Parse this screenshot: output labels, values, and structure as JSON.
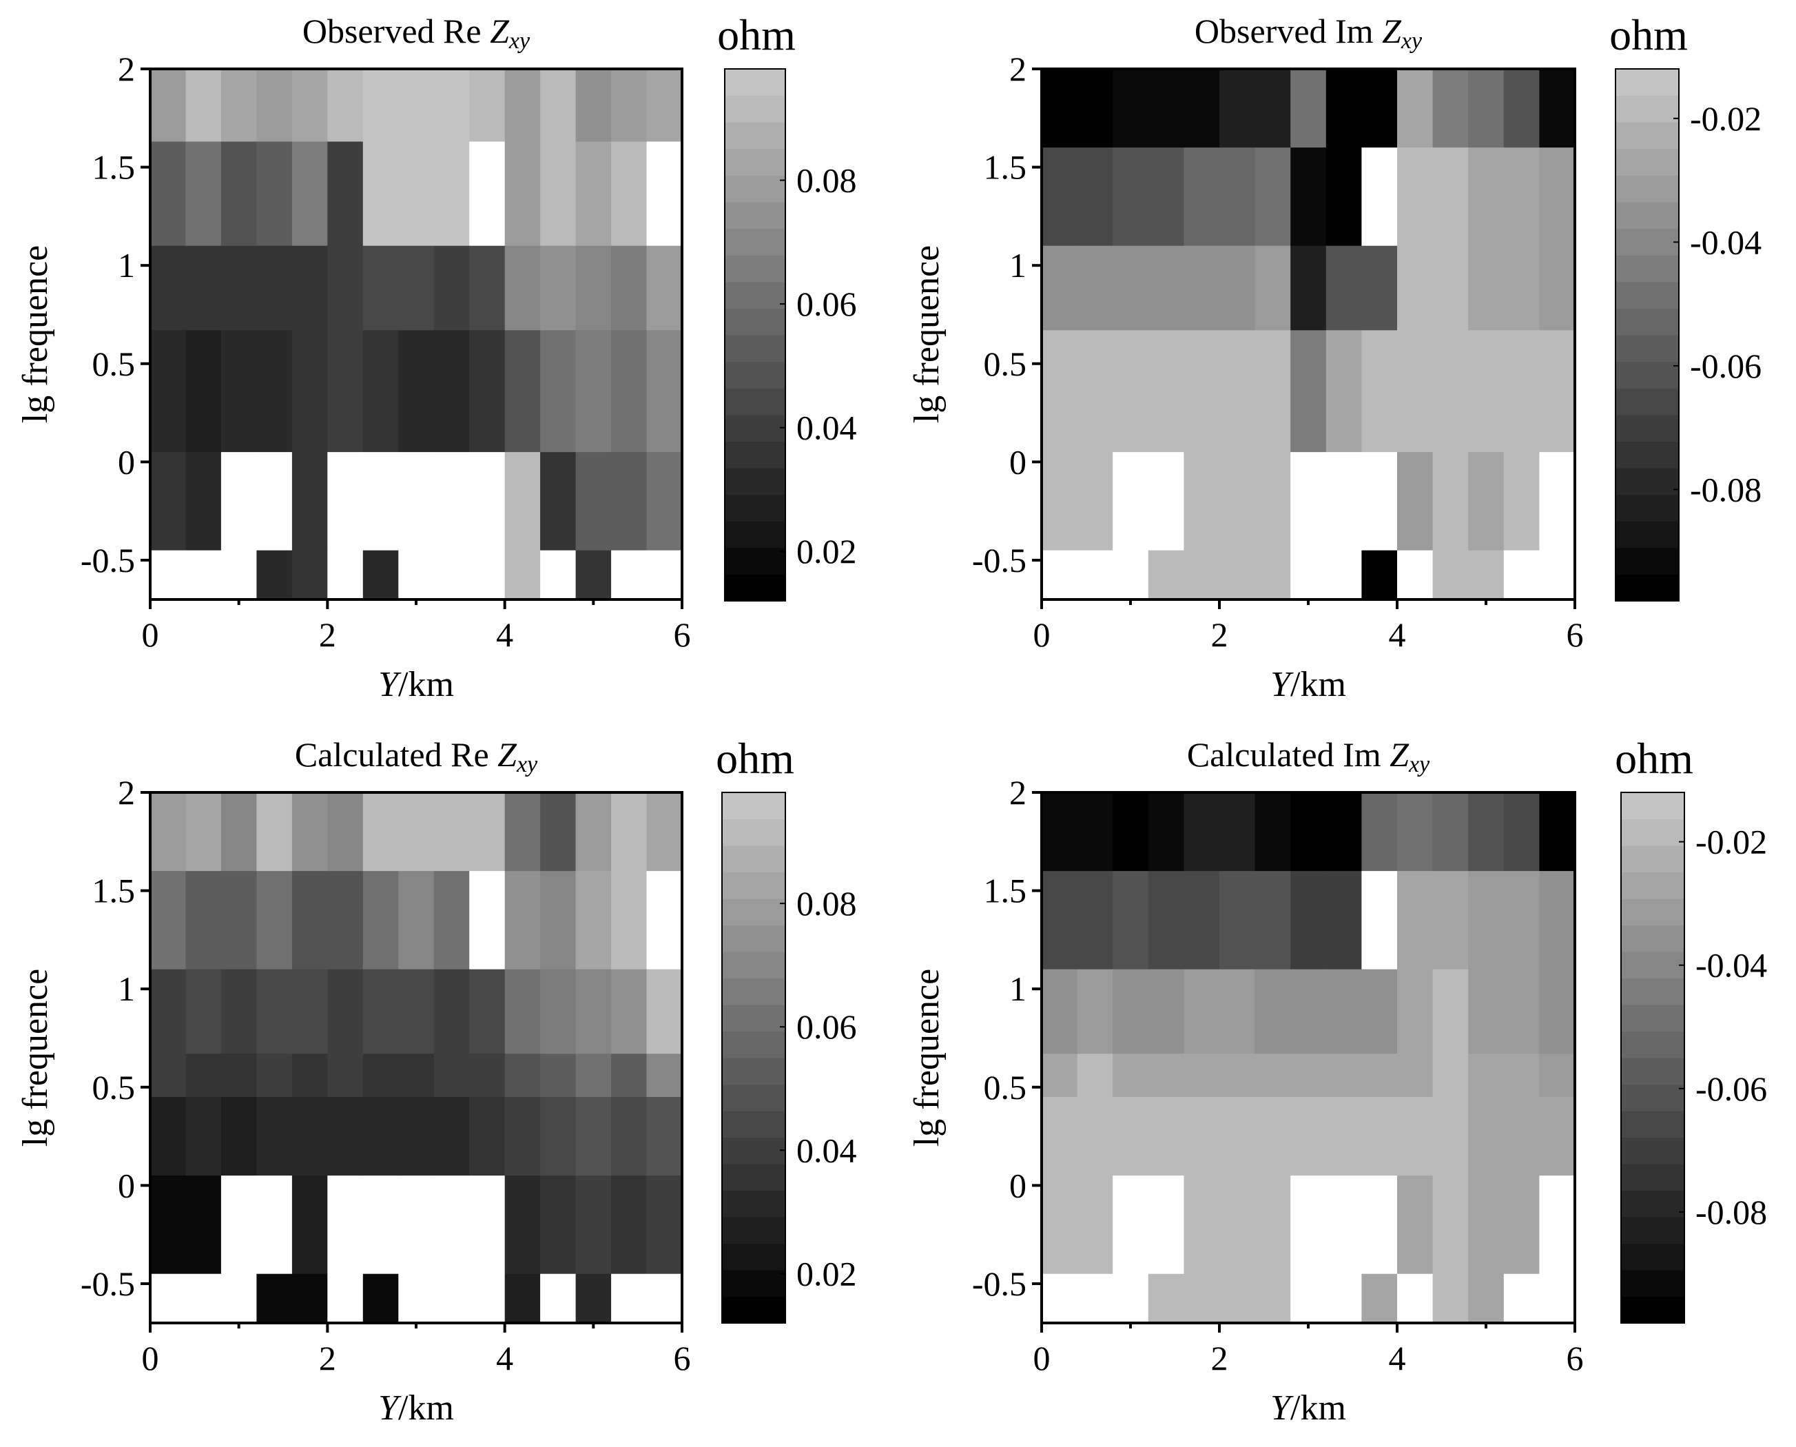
{
  "figure": {
    "colormap": {
      "low": "#000000",
      "high": "#c4c4c4",
      "missing": "#ffffff",
      "levels": 20
    }
  },
  "chart_data": [
    {
      "type": "heatmap",
      "title": {
        "prefix": "Observed Re ",
        "italic": "Z",
        "subscript": "xy"
      },
      "xlabel": {
        "italic": "Y",
        "rest": "/km"
      },
      "ylabel": "lg frequence",
      "xlim": [
        0,
        6
      ],
      "ylim": [
        -0.7,
        2
      ],
      "xticks": [
        "0",
        "2",
        "4",
        "6"
      ],
      "yticks": [
        "2",
        "1.5",
        "1",
        "0.5",
        "0",
        "-0.5"
      ],
      "colorbar": {
        "unit": "ohm",
        "range": [
          0.012,
          0.098
        ],
        "ticks": [
          "0.08",
          "0.06",
          "0.04",
          "0.02"
        ]
      },
      "x_edges": [
        0,
        0.4,
        0.8,
        1.2,
        1.6,
        2.0,
        2.4,
        2.8,
        3.2,
        3.6,
        4.0,
        4.4,
        4.8,
        5.2,
        5.6,
        6.0
      ],
      "y_rows": [
        {
          "from": 1.63,
          "to": 2.0,
          "values": [
            0.08,
            0.09,
            0.085,
            0.08,
            0.085,
            0.09,
            0.095,
            0.095,
            0.095,
            0.09,
            0.08,
            0.09,
            0.075,
            0.08,
            0.085
          ]
        },
        {
          "from": 1.1,
          "to": 1.63,
          "values": [
            0.055,
            0.06,
            0.05,
            0.055,
            0.065,
            0.04,
            0.095,
            0.095,
            0.095,
            null,
            0.08,
            0.09,
            0.085,
            0.09,
            null
          ]
        },
        {
          "from": 0.67,
          "to": 1.1,
          "values": [
            0.035,
            0.035,
            0.035,
            0.035,
            0.035,
            0.04,
            0.045,
            0.045,
            0.04,
            0.045,
            0.07,
            0.075,
            0.07,
            0.065,
            0.08
          ]
        },
        {
          "from": 0.05,
          "to": 0.67,
          "values": [
            0.03,
            0.025,
            0.03,
            0.03,
            0.035,
            0.04,
            0.035,
            0.03,
            0.03,
            0.035,
            0.05,
            0.06,
            0.065,
            0.06,
            0.07
          ]
        },
        {
          "from": -0.45,
          "to": 0.05,
          "values": [
            0.035,
            0.03,
            null,
            null,
            0.035,
            null,
            null,
            null,
            null,
            null,
            0.09,
            0.035,
            0.055,
            0.055,
            0.06
          ]
        },
        {
          "from": -0.7,
          "to": -0.45,
          "values": [
            null,
            null,
            null,
            0.03,
            0.035,
            null,
            0.03,
            null,
            null,
            null,
            0.09,
            null,
            0.035,
            null,
            null
          ]
        }
      ]
    },
    {
      "type": "heatmap",
      "title": {
        "prefix": "Observed Im ",
        "italic": "Z",
        "subscript": "xy"
      },
      "xlabel": {
        "italic": "Y",
        "rest": "/km"
      },
      "ylabel": "lg frequence",
      "xlim": [
        0,
        6
      ],
      "ylim": [
        -0.7,
        2
      ],
      "xticks": [
        "0",
        "2",
        "4",
        "6"
      ],
      "yticks": [
        "2",
        "1.5",
        "1",
        "0.5",
        "0",
        "-0.5"
      ],
      "colorbar": {
        "unit": "ohm",
        "range": [
          -0.098,
          -0.012
        ],
        "ticks": [
          "-0.02",
          "-0.04",
          "-0.06",
          "-0.08"
        ]
      },
      "x_edges": [
        0,
        0.4,
        0.8,
        1.2,
        1.6,
        2.0,
        2.4,
        2.8,
        3.2,
        3.6,
        4.0,
        4.4,
        4.8,
        5.2,
        5.6,
        6.0
      ],
      "y_rows": [
        {
          "from": 1.6,
          "to": 2.0,
          "values": [
            -0.095,
            -0.095,
            -0.09,
            -0.09,
            -0.09,
            -0.085,
            -0.085,
            -0.05,
            -0.095,
            -0.095,
            -0.025,
            -0.045,
            -0.05,
            -0.06,
            -0.09
          ]
        },
        {
          "from": 1.1,
          "to": 1.6,
          "values": [
            -0.065,
            -0.065,
            -0.06,
            -0.06,
            -0.055,
            -0.055,
            -0.05,
            -0.09,
            -0.095,
            null,
            -0.02,
            -0.02,
            -0.025,
            -0.025,
            -0.03
          ]
        },
        {
          "from": 0.67,
          "to": 1.1,
          "values": [
            -0.035,
            -0.035,
            -0.035,
            -0.035,
            -0.035,
            -0.035,
            -0.03,
            -0.085,
            -0.06,
            -0.06,
            -0.02,
            -0.02,
            -0.025,
            -0.025,
            -0.03
          ]
        },
        {
          "from": 0.05,
          "to": 0.67,
          "values": [
            -0.02,
            -0.02,
            -0.02,
            -0.02,
            -0.02,
            -0.02,
            -0.02,
            -0.045,
            -0.025,
            -0.02,
            -0.02,
            -0.02,
            -0.02,
            -0.02,
            -0.02
          ]
        },
        {
          "from": -0.45,
          "to": 0.05,
          "values": [
            -0.02,
            -0.02,
            null,
            null,
            -0.02,
            -0.02,
            -0.02,
            null,
            null,
            null,
            -0.03,
            -0.02,
            -0.025,
            -0.02,
            null
          ]
        },
        {
          "from": -0.7,
          "to": -0.45,
          "values": [
            null,
            null,
            null,
            -0.02,
            -0.02,
            -0.02,
            -0.02,
            null,
            null,
            -0.095,
            null,
            -0.02,
            -0.02,
            null,
            null
          ]
        }
      ]
    },
    {
      "type": "heatmap",
      "title": {
        "prefix": "Calculated Re ",
        "italic": "Z",
        "subscript": "xy"
      },
      "xlabel": {
        "italic": "Y",
        "rest": "/km"
      },
      "ylabel": "lg frequence",
      "xlim": [
        0,
        6
      ],
      "ylim": [
        -0.7,
        2
      ],
      "xticks": [
        "0",
        "2",
        "4",
        "6"
      ],
      "yticks": [
        "2",
        "1.5",
        "1",
        "0.5",
        "0",
        "-0.5"
      ],
      "colorbar": {
        "unit": "ohm",
        "range": [
          0.012,
          0.098
        ],
        "ticks": [
          "0.08",
          "0.06",
          "0.04",
          "0.02"
        ]
      },
      "x_edges": [
        0,
        0.4,
        0.8,
        1.2,
        1.6,
        2.0,
        2.4,
        2.8,
        3.2,
        3.6,
        4.0,
        4.4,
        4.8,
        5.2,
        5.6,
        6.0
      ],
      "y_rows": [
        {
          "from": 1.6,
          "to": 2.0,
          "values": [
            0.08,
            0.085,
            0.07,
            0.09,
            0.075,
            0.07,
            0.09,
            0.09,
            0.09,
            0.09,
            0.06,
            0.05,
            0.08,
            0.09,
            0.085
          ]
        },
        {
          "from": 1.1,
          "to": 1.6,
          "values": [
            0.06,
            0.055,
            0.055,
            0.06,
            0.05,
            0.05,
            0.06,
            0.07,
            0.06,
            null,
            0.075,
            0.07,
            0.085,
            0.09,
            null
          ]
        },
        {
          "from": 0.67,
          "to": 1.1,
          "values": [
            0.04,
            0.045,
            0.04,
            0.045,
            0.045,
            0.04,
            0.045,
            0.045,
            0.04,
            0.045,
            0.06,
            0.065,
            0.07,
            0.075,
            0.09
          ]
        },
        {
          "from": 0.45,
          "to": 0.67,
          "values": [
            0.04,
            0.035,
            0.035,
            0.04,
            0.035,
            0.04,
            0.035,
            0.035,
            0.04,
            0.04,
            0.05,
            0.055,
            0.06,
            0.055,
            0.07
          ]
        },
        {
          "from": 0.05,
          "to": 0.45,
          "values": [
            0.025,
            0.03,
            0.025,
            0.03,
            0.03,
            0.03,
            0.03,
            0.03,
            0.03,
            0.035,
            0.04,
            0.045,
            0.05,
            0.045,
            0.05
          ]
        },
        {
          "from": -0.45,
          "to": 0.05,
          "values": [
            0.02,
            0.02,
            null,
            null,
            0.025,
            null,
            null,
            null,
            null,
            null,
            0.03,
            0.035,
            0.04,
            0.035,
            0.04
          ]
        },
        {
          "from": -0.7,
          "to": -0.45,
          "values": [
            null,
            null,
            null,
            0.02,
            0.02,
            null,
            0.02,
            null,
            null,
            null,
            0.025,
            null,
            0.03,
            null,
            null
          ]
        }
      ]
    },
    {
      "type": "heatmap",
      "title": {
        "prefix": "Calculated Im ",
        "italic": "Z",
        "subscript": "xy"
      },
      "xlabel": {
        "italic": "Y",
        "rest": "/km"
      },
      "ylabel": "lg frequence",
      "xlim": [
        0,
        6
      ],
      "ylim": [
        -0.7,
        2
      ],
      "xticks": [
        "0",
        "2",
        "4",
        "6"
      ],
      "yticks": [
        "2",
        "1.5",
        "1",
        "0.5",
        "0",
        "-0.5"
      ],
      "colorbar": {
        "unit": "ohm",
        "range": [
          -0.098,
          -0.012
        ],
        "ticks": [
          "-0.02",
          "-0.04",
          "-0.06",
          "-0.08"
        ]
      },
      "x_edges": [
        0,
        0.4,
        0.8,
        1.2,
        1.6,
        2.0,
        2.4,
        2.8,
        3.2,
        3.6,
        4.0,
        4.4,
        4.8,
        5.2,
        5.6,
        6.0
      ],
      "y_rows": [
        {
          "from": 1.6,
          "to": 2.0,
          "values": [
            -0.09,
            -0.09,
            -0.095,
            -0.09,
            -0.085,
            -0.085,
            -0.09,
            -0.095,
            -0.095,
            -0.055,
            -0.05,
            -0.055,
            -0.06,
            -0.065,
            -0.095
          ]
        },
        {
          "from": 1.1,
          "to": 1.6,
          "values": [
            -0.065,
            -0.065,
            -0.06,
            -0.065,
            -0.065,
            -0.06,
            -0.06,
            -0.07,
            -0.07,
            null,
            -0.025,
            -0.025,
            -0.03,
            -0.03,
            -0.035
          ]
        },
        {
          "from": 0.67,
          "to": 1.1,
          "values": [
            -0.035,
            -0.03,
            -0.035,
            -0.035,
            -0.03,
            -0.03,
            -0.035,
            -0.035,
            -0.035,
            -0.035,
            -0.025,
            -0.02,
            -0.03,
            -0.03,
            -0.035
          ]
        },
        {
          "from": 0.45,
          "to": 0.67,
          "values": [
            -0.025,
            -0.02,
            -0.025,
            -0.025,
            -0.025,
            -0.025,
            -0.025,
            -0.025,
            -0.025,
            -0.025,
            -0.025,
            -0.02,
            -0.025,
            -0.025,
            -0.03
          ]
        },
        {
          "from": 0.05,
          "to": 0.45,
          "values": [
            -0.02,
            -0.02,
            -0.02,
            -0.02,
            -0.02,
            -0.02,
            -0.02,
            -0.02,
            -0.02,
            -0.02,
            -0.02,
            -0.02,
            -0.025,
            -0.025,
            -0.025
          ]
        },
        {
          "from": -0.45,
          "to": 0.05,
          "values": [
            -0.02,
            -0.02,
            null,
            null,
            -0.02,
            -0.02,
            -0.02,
            null,
            null,
            null,
            -0.025,
            -0.02,
            -0.025,
            -0.025,
            null
          ]
        },
        {
          "from": -0.7,
          "to": -0.45,
          "values": [
            null,
            null,
            null,
            -0.02,
            -0.02,
            -0.02,
            -0.02,
            null,
            null,
            -0.025,
            null,
            -0.02,
            -0.025,
            null,
            null
          ]
        }
      ]
    }
  ]
}
